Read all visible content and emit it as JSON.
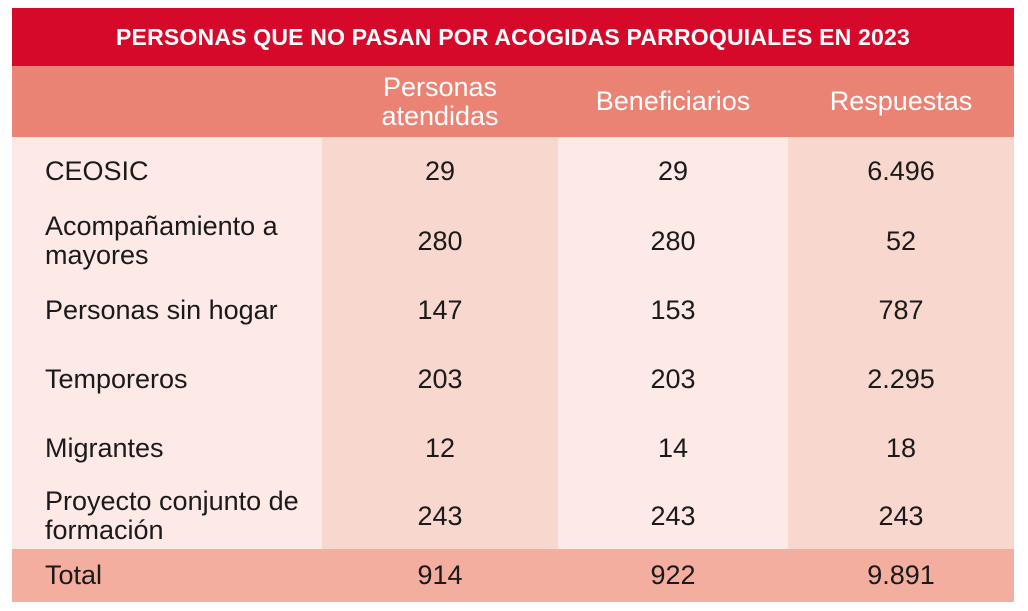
{
  "title": "PERSONAS QUE NO PASAN POR ACOGIDAS PARROQUIALES EN 2023",
  "columns": [
    "Personas atendidas",
    "Beneficiarios",
    "Respuestas"
  ],
  "rows": [
    {
      "label": "CEOSIC",
      "values": [
        "29",
        "29",
        "6.496"
      ]
    },
    {
      "label": "Acompañamiento a mayores",
      "values": [
        "280",
        "280",
        "52"
      ]
    },
    {
      "label": "Personas sin hogar",
      "values": [
        "147",
        "153",
        "787"
      ]
    },
    {
      "label": "Temporeros",
      "values": [
        "203",
        "203",
        "2.295"
      ]
    },
    {
      "label": "Migrantes",
      "values": [
        "12",
        "14",
        "18"
      ]
    },
    {
      "label": "Proyecto conjunto de formación",
      "values": [
        "243",
        "243",
        "243"
      ]
    }
  ],
  "total": {
    "label": "Total",
    "values": [
      "914",
      "922",
      "9.891"
    ]
  },
  "colors": {
    "title_bg": "#d6092b",
    "header_bg": "#ea8374",
    "label_col_bg": "#fde9e6",
    "col1_bg": "#f8d7cf",
    "col2_bg": "#fde9e6",
    "col3_bg": "#f8d7cf",
    "total_bg": "#f3aea0"
  },
  "chart_data": {
    "type": "table",
    "title": "PERSONAS QUE NO PASAN POR ACOGIDAS PARROQUIALES EN 2023",
    "columns": [
      "",
      "Personas atendidas",
      "Beneficiarios",
      "Respuestas"
    ],
    "rows": [
      [
        "CEOSIC",
        29,
        29,
        6496
      ],
      [
        "Acompañamiento a mayores",
        280,
        280,
        52
      ],
      [
        "Personas sin hogar",
        147,
        153,
        787
      ],
      [
        "Temporeros",
        203,
        203,
        2295
      ],
      [
        "Migrantes",
        12,
        14,
        18
      ],
      [
        "Proyecto conjunto de formación",
        243,
        243,
        243
      ],
      [
        "Total",
        914,
        922,
        9891
      ]
    ]
  }
}
